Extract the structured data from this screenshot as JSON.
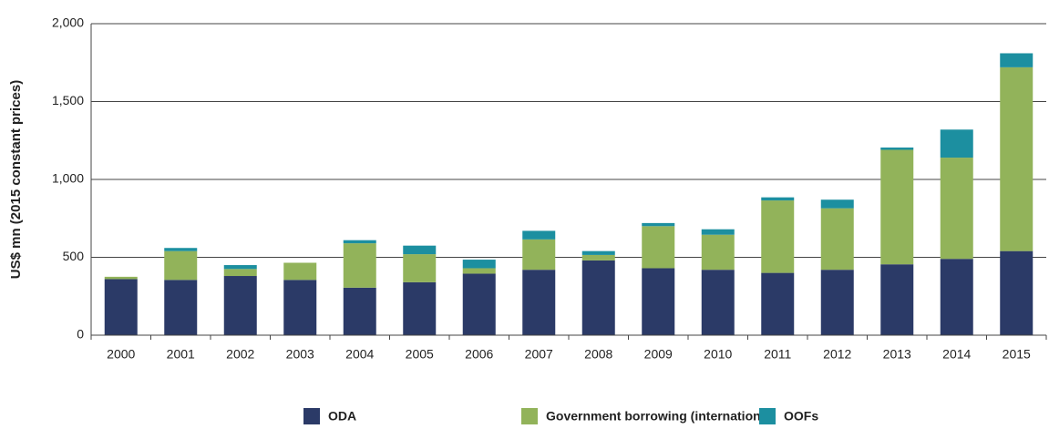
{
  "chart_data": {
    "type": "stacked_bar",
    "y_label": "US$ mn (2015 constant prices)",
    "categories": [
      "2000",
      "2001",
      "2002",
      "2003",
      "2004",
      "2005",
      "2006",
      "2007",
      "2008",
      "2009",
      "2010",
      "2011",
      "2012",
      "2013",
      "2014",
      "2015"
    ],
    "series": [
      {
        "name": "ODA",
        "color": "#2b3a67",
        "values": [
          360,
          355,
          380,
          355,
          305,
          340,
          395,
          420,
          480,
          430,
          420,
          400,
          420,
          455,
          490,
          540
        ]
      },
      {
        "name": "Government borrowing (international)",
        "color": "#92b35a",
        "values": [
          15,
          185,
          45,
          110,
          285,
          180,
          35,
          195,
          35,
          270,
          225,
          465,
          395,
          735,
          650,
          1180
        ]
      },
      {
        "name": "OOFs",
        "color": "#1c8fa0",
        "values": [
          0,
          20,
          25,
          0,
          20,
          55,
          55,
          55,
          25,
          20,
          35,
          20,
          55,
          15,
          180,
          90
        ]
      }
    ],
    "ylim": [
      0,
      2000
    ],
    "yticks": [
      0,
      500,
      {
        "value": 1000,
        "label": "1,000"
      },
      {
        "value": 1500,
        "label": "1,500"
      },
      {
        "value": 2000,
        "label": "2,000"
      }
    ],
    "grid": true,
    "legend": "bottom"
  }
}
